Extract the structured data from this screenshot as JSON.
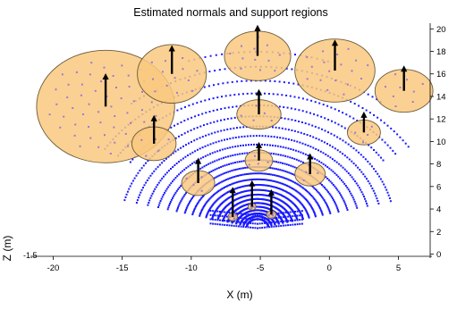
{
  "chart_data": {
    "type": "scatter",
    "title": "Estimated normals and support regions",
    "xlabel": "X (m)",
    "ylabel": "Z (m)",
    "xlim": [
      -21,
      7.3
    ],
    "ylim": [
      -0.2,
      20.5
    ],
    "x_ticks": [
      -20,
      -15,
      -10,
      -5,
      0,
      5
    ],
    "y_ticks": [
      0,
      2,
      4,
      6,
      8,
      10,
      12,
      14,
      16,
      18,
      20
    ],
    "x_tick_labels": [
      "-20",
      "-15",
      "-10",
      "-5",
      "0",
      "5"
    ],
    "y_tick_labels": [
      "0",
      "2",
      "4",
      "6",
      "8",
      "10",
      "12",
      "14",
      "16",
      "18",
      "20"
    ],
    "y_axis_position": "right",
    "corner_label": "-1.5",
    "grid": false,
    "scanner_origin": [
      -5.2,
      2.3
    ],
    "point_color": "#1a1aff",
    "region_fill": "#f9c97f",
    "region_stroke": "#6b5a3a",
    "sample_point_color": "#a07ad0",
    "normal_color": "#000000",
    "support_regions": [
      {
        "center": [
          -16.2,
          13.1
        ],
        "rx": 5.0,
        "ry": 5.0,
        "normal": [
          0.0,
          2.8
        ]
      },
      {
        "center": [
          -11.4,
          16.0
        ],
        "rx": 2.5,
        "ry": 2.6,
        "normal": [
          0.0,
          2.4
        ]
      },
      {
        "center": [
          -5.2,
          17.6
        ],
        "rx": 2.4,
        "ry": 2.2,
        "normal": [
          0.0,
          2.6
        ]
      },
      {
        "center": [
          0.4,
          16.3
        ],
        "rx": 2.9,
        "ry": 2.8,
        "normal": [
          0.0,
          2.6
        ]
      },
      {
        "center": [
          5.4,
          14.5
        ],
        "rx": 2.1,
        "ry": 1.9,
        "normal": [
          0.0,
          2.1
        ]
      },
      {
        "center": [
          -12.7,
          9.8
        ],
        "rx": 1.6,
        "ry": 1.5,
        "normal": [
          0.0,
          2.4
        ]
      },
      {
        "center": [
          -5.1,
          12.4
        ],
        "rx": 1.6,
        "ry": 1.3,
        "normal": [
          0.0,
          2.1
        ]
      },
      {
        "center": [
          2.5,
          10.8
        ],
        "rx": 1.2,
        "ry": 1.1,
        "normal": [
          0.0,
          1.7
        ]
      },
      {
        "center": [
          -5.1,
          8.3
        ],
        "rx": 1.0,
        "ry": 0.95,
        "normal": [
          0.0,
          1.5
        ]
      },
      {
        "center": [
          -9.5,
          6.3
        ],
        "rx": 1.2,
        "ry": 1.1,
        "normal": [
          0.0,
          2.1
        ]
      },
      {
        "center": [
          -1.4,
          7.1
        ],
        "rx": 1.1,
        "ry": 1.05,
        "normal": [
          0.0,
          1.7
        ]
      },
      {
        "center": [
          -7.0,
          3.3
        ],
        "rx": 0.35,
        "ry": 0.35,
        "normal": [
          0.0,
          2.5
        ]
      },
      {
        "center": [
          -5.6,
          4.2
        ],
        "rx": 0.3,
        "ry": 0.3,
        "normal": [
          0.0,
          2.2
        ]
      },
      {
        "center": [
          -4.2,
          3.5
        ],
        "rx": 0.35,
        "ry": 0.35,
        "normal": [
          0.0,
          2.1
        ]
      }
    ]
  }
}
